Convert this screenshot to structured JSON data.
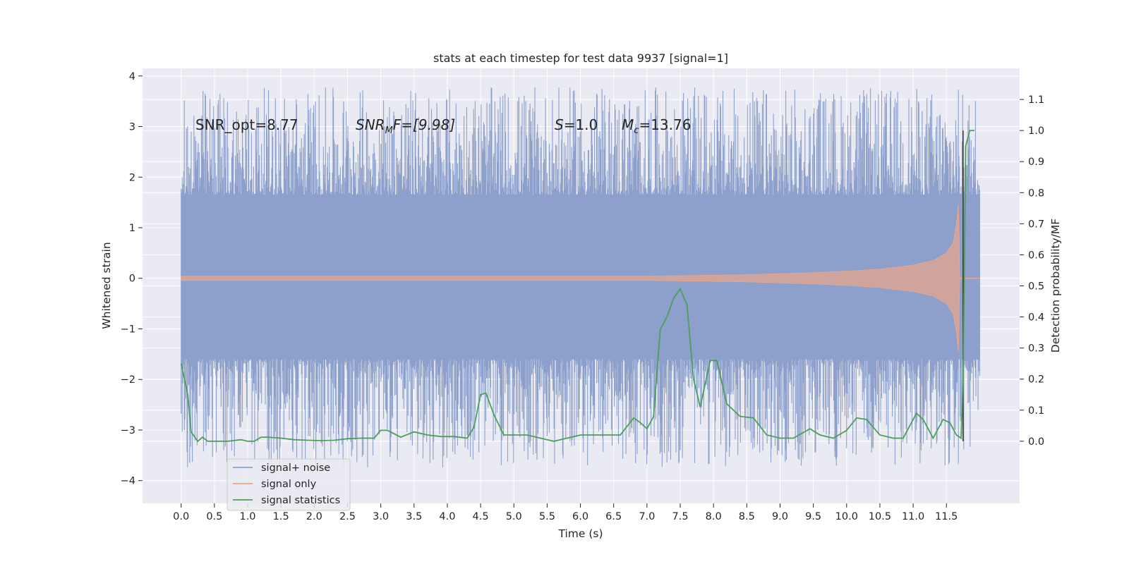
{
  "chart_data": {
    "type": "line",
    "title": "stats at each timestep for test data 9937 [signal=1]",
    "xlabel": "Time (s)",
    "ylabel": "Whitened strain",
    "ylabel_right": "Detection probability/MF",
    "xlim": [
      -0.58,
      12.6
    ],
    "ylim": [
      -4.45,
      4.15
    ],
    "ylim_right": [
      -0.2,
      1.2
    ],
    "xticks": [
      "0.0",
      "0.5",
      "1.0",
      "1.5",
      "2.0",
      "2.5",
      "3.0",
      "3.5",
      "4.0",
      "4.5",
      "5.0",
      "5.5",
      "6.0",
      "6.5",
      "7.0",
      "7.5",
      "8.0",
      "8.5",
      "9.0",
      "9.5",
      "10.0",
      "10.5",
      "11.0",
      "11.5"
    ],
    "yticks": [
      "4",
      "3",
      "2",
      "1",
      "0",
      "−1",
      "−2",
      "−3",
      "−4"
    ],
    "yticks_right": [
      "1.1",
      "1.0",
      "0.9",
      "0.8",
      "0.7",
      "0.6",
      "0.5",
      "0.4",
      "0.3",
      "0.2",
      "0.1",
      "0.0"
    ],
    "grid": true,
    "legend_placement": "lower-left",
    "annotations": {
      "snr_opt": "SNR_opt=8.77",
      "snr_mf_sym": "SNR",
      "snr_mf_sub": "M",
      "snr_mf_rest": "F=[9.98]",
      "s_sym": "S",
      "s_rest": "=1.0",
      "mc_sym": "M",
      "mc_sub": "c",
      "mc_rest": "=13.76"
    },
    "noise_band": {
      "time_range": [
        0.0,
        12.0
      ],
      "dense_range": [
        -1.6,
        1.65
      ],
      "spike_range": [
        -3.75,
        3.78
      ]
    },
    "signal_envelope": {
      "x": [
        0.0,
        1.0,
        2.0,
        3.0,
        4.0,
        5.0,
        6.0,
        7.0,
        8.0,
        8.5,
        9.0,
        9.5,
        10.0,
        10.5,
        11.0,
        11.3,
        11.5,
        11.6,
        11.65,
        11.68,
        11.7
      ],
      "amp": [
        0.04,
        0.04,
        0.04,
        0.04,
        0.04,
        0.04,
        0.04,
        0.04,
        0.06,
        0.07,
        0.09,
        0.11,
        0.14,
        0.18,
        0.26,
        0.35,
        0.5,
        0.7,
        1.05,
        1.45,
        0.0
      ]
    },
    "series": [
      {
        "name": "signal+ noise",
        "color": "#8da0cb"
      },
      {
        "name": "signal only",
        "color": "#e5a68c"
      },
      {
        "name": "signal statistics",
        "color": "#4c9e5a",
        "axis": "right",
        "x": [
          0.0,
          0.1,
          0.15,
          0.25,
          0.32,
          0.4,
          0.5,
          0.7,
          0.9,
          1.0,
          1.1,
          1.2,
          1.3,
          1.5,
          1.7,
          1.9,
          2.1,
          2.3,
          2.5,
          2.7,
          2.9,
          3.0,
          3.1,
          3.3,
          3.5,
          3.7,
          3.9,
          4.1,
          4.3,
          4.4,
          4.5,
          4.58,
          4.7,
          4.85,
          5.0,
          5.2,
          5.4,
          5.6,
          5.8,
          6.0,
          6.2,
          6.4,
          6.6,
          6.8,
          6.9,
          7.0,
          7.1,
          7.2,
          7.3,
          7.4,
          7.5,
          7.6,
          7.7,
          7.8,
          7.95,
          8.05,
          8.2,
          8.4,
          8.6,
          8.8,
          9.0,
          9.2,
          9.45,
          9.6,
          9.8,
          10.0,
          10.15,
          10.3,
          10.5,
          10.7,
          10.85,
          10.95,
          11.05,
          11.15,
          11.3,
          11.45,
          11.55,
          11.65,
          11.72,
          11.75,
          11.79,
          11.85,
          11.92
        ],
        "y": [
          0.25,
          0.15,
          0.03,
          0.0,
          0.013,
          0.0,
          0.0,
          0.0,
          0.005,
          0.0,
          0.0,
          0.013,
          0.013,
          0.01,
          0.005,
          0.003,
          0.002,
          0.003,
          0.008,
          0.01,
          0.01,
          0.035,
          0.035,
          0.013,
          0.03,
          0.02,
          0.015,
          0.015,
          0.01,
          0.045,
          0.15,
          0.155,
          0.085,
          0.02,
          0.02,
          0.02,
          0.01,
          0.0,
          0.01,
          0.02,
          0.02,
          0.02,
          0.02,
          0.075,
          0.06,
          0.04,
          0.08,
          0.36,
          0.4,
          0.46,
          0.49,
          0.44,
          0.2,
          0.11,
          0.26,
          0.26,
          0.12,
          0.08,
          0.075,
          0.02,
          0.01,
          0.01,
          0.04,
          0.02,
          0.01,
          0.035,
          0.075,
          0.07,
          0.02,
          0.01,
          0.01,
          0.05,
          0.09,
          0.07,
          0.01,
          0.07,
          0.06,
          0.02,
          0.01,
          0.2,
          0.95,
          1.0,
          1.0
        ]
      }
    ]
  }
}
